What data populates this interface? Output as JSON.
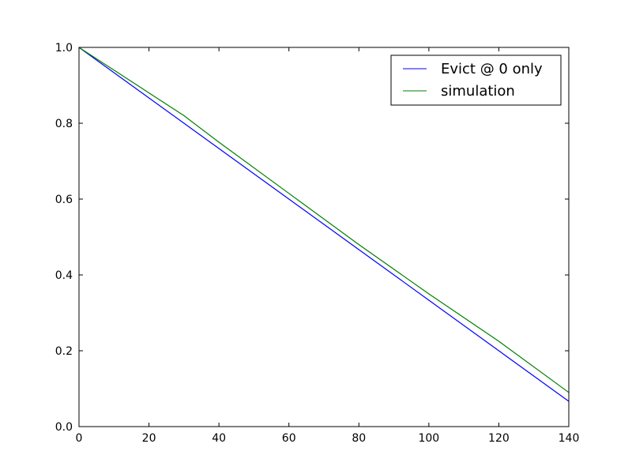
{
  "chart_data": {
    "type": "line",
    "title": "",
    "xlabel": "",
    "ylabel": "",
    "xlim": [
      0,
      140
    ],
    "ylim": [
      0.0,
      1.0
    ],
    "xticks": [
      0,
      20,
      40,
      60,
      80,
      100,
      120,
      140
    ],
    "xtick_labels": [
      "0",
      "20",
      "40",
      "60",
      "80",
      "100",
      "120",
      "140"
    ],
    "yticks": [
      0.0,
      0.2,
      0.4,
      0.6,
      0.8,
      1.0
    ],
    "ytick_labels": [
      "0.0",
      "0.2",
      "0.4",
      "0.6",
      "0.8",
      "1.0"
    ],
    "grid": false,
    "legend_position": "top-right",
    "series": [
      {
        "name": "Evict @ 0 only",
        "color": "#0000ff",
        "x": [
          0,
          20,
          40,
          60,
          80,
          100,
          120,
          140
        ],
        "y": [
          1.0,
          0.8667,
          0.7333,
          0.6,
          0.4667,
          0.3333,
          0.2,
          0.0667
        ]
      },
      {
        "name": "simulation",
        "color": "#008000",
        "x": [
          0,
          10,
          20,
          30,
          40,
          60,
          80,
          100,
          120,
          140
        ],
        "y": [
          1.0,
          0.94,
          0.88,
          0.82,
          0.75,
          0.615,
          0.48,
          0.35,
          0.225,
          0.09
        ]
      }
    ]
  }
}
